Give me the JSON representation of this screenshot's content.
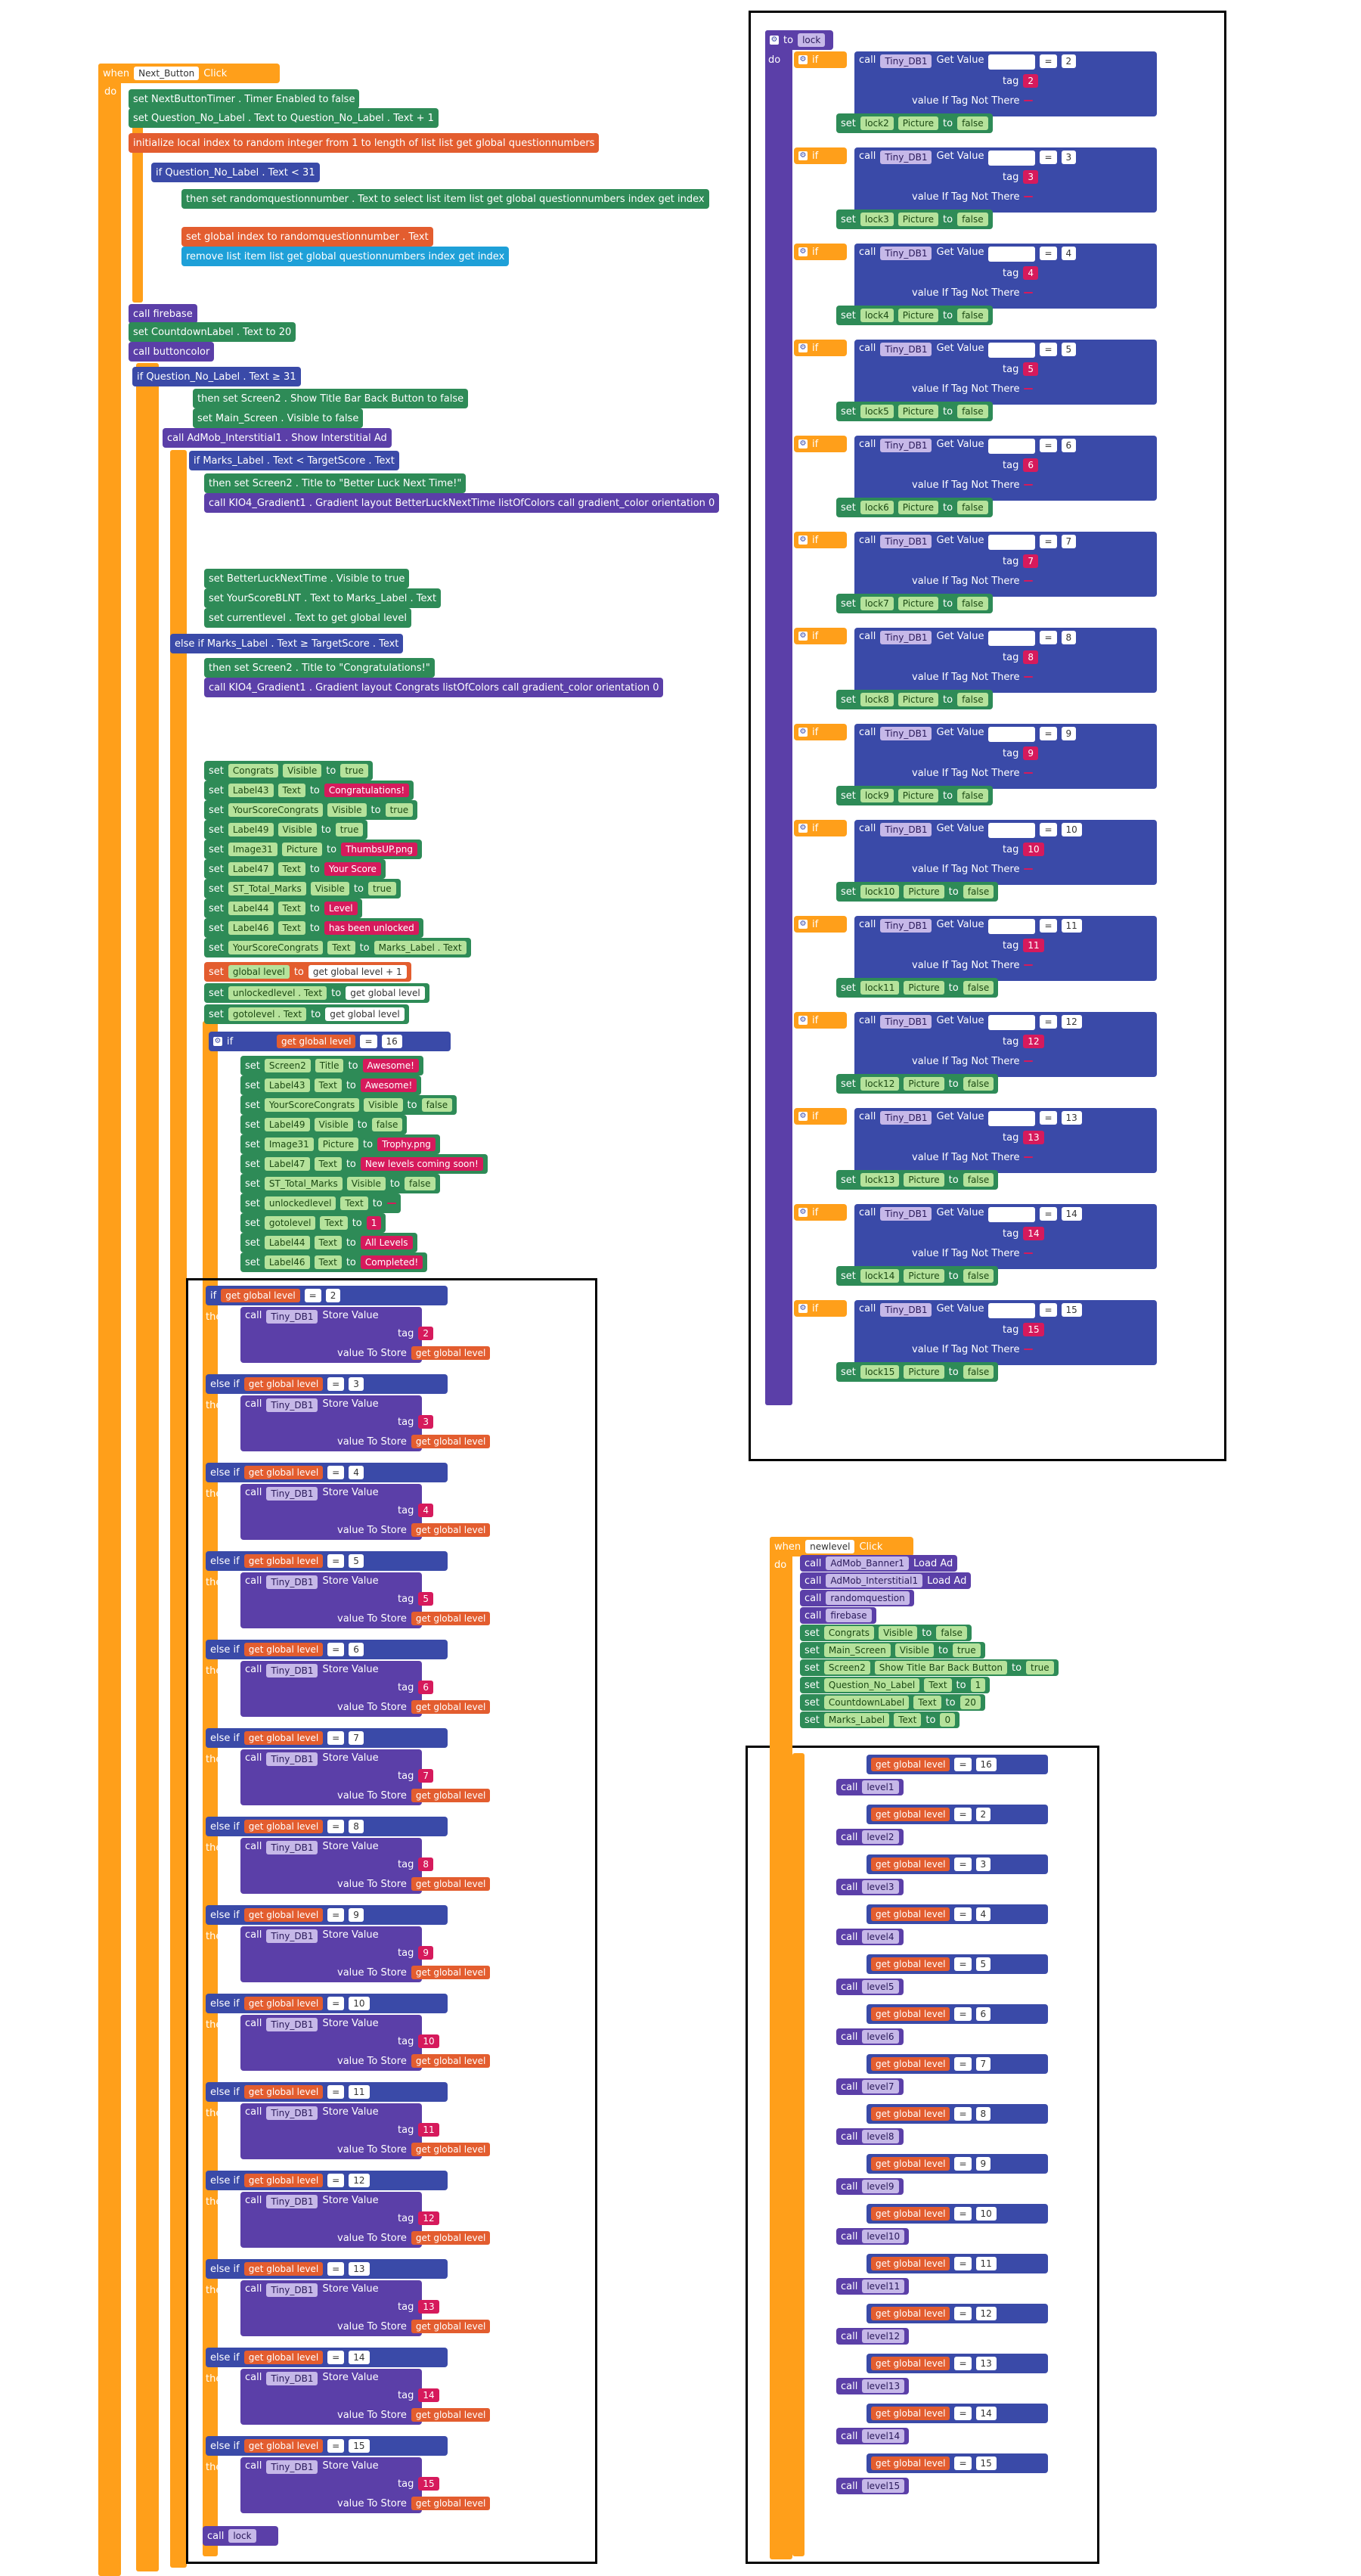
{
  "event_next": {
    "when": "when",
    "component": "Next_Button",
    "event": "Click",
    "do": "do"
  },
  "next_lines": [
    {
      "t": "set NextButtonTimer . Timer Enabled to false"
    },
    {
      "t": "set Question_No_Label . Text to  Question_No_Label . Text + 1"
    },
    {
      "t": "initialize local index to random integer from 1 to length of list list get global questionnumbers"
    },
    {
      "t": "if Question_No_Label . Text < 31"
    },
    {
      "t": "then set randomquestionnumber . Text to select list item list get global questionnumbers index get index"
    },
    {
      "t": "set global index to randomquestionnumber . Text"
    },
    {
      "t": "remove list item list get global questionnumbers index get index"
    },
    {
      "t": "call firebase"
    },
    {
      "t": "set CountdownLabel . Text to 20"
    },
    {
      "t": "call buttoncolor"
    },
    {
      "t": "if Question_No_Label . Text ≥ 31"
    },
    {
      "t": "then set Screen2 . Show Title Bar Back Button to false"
    },
    {
      "t": "set Main_Screen . Visible to false"
    },
    {
      "t": "call AdMob_Interstitial1 . Show Interstitial Ad"
    },
    {
      "t": "if Marks_Label . Text < TargetScore . Text"
    },
    {
      "t": "then set Screen2 . Title to \"Better Luck Next Time!\""
    },
    {
      "t": "call KIO4_Gradient1 . Gradient layout BetterLuckNextTime listOfColors call gradient_color orientation 0"
    },
    {
      "t": "set BetterLuckNextTime . Visible to true"
    },
    {
      "t": "set YourScoreBLNT . Text to Marks_Label . Text"
    },
    {
      "t": "set currentlevel . Text to get global level"
    },
    {
      "t": "else if Marks_Label . Text ≥ TargetScore . Text"
    },
    {
      "t": "then set Screen2 . Title to \"Congratulations!\""
    },
    {
      "t": "call KIO4_Gradient1 . Gradient layout Congrats listOfColors call gradient_color orientation 0"
    }
  ],
  "labels": {
    "set": "set",
    "call": "call",
    "to": "to",
    "get": "get",
    "if": "if",
    "then": "then",
    "else_if": "else if",
    "do": "do",
    "get_value": "Get Value",
    "tag": "tag",
    "not_there": "value If Tag Not There",
    "store_value": "Store Value",
    "value_to_store": "value To Store",
    "picture": "Picture",
    "false": "false",
    "true": "true",
    "tinydb": "Tiny_DB1",
    "global_level": "global level",
    "eq": "=",
    "to_lock": "to",
    "lock": "lock"
  },
  "congrats_sets": [
    {
      "comp": "Congrats",
      "prop": "Visible",
      "val": "true",
      "kind": "bool"
    },
    {
      "comp": "Label43",
      "prop": "Text",
      "val": "Congratulations!",
      "kind": "str"
    },
    {
      "comp": "YourScoreCongrats",
      "prop": "Visible",
      "val": "true",
      "kind": "bool"
    },
    {
      "comp": "Label49",
      "prop": "Visible",
      "val": "true",
      "kind": "bool"
    },
    {
      "comp": "Image31",
      "prop": "Picture",
      "val": "ThumbsUP.png",
      "kind": "str"
    },
    {
      "comp": "Label47",
      "prop": "Text",
      "val": "Your Score",
      "kind": "str"
    },
    {
      "comp": "ST_Total_Marks",
      "prop": "Visible",
      "val": "true",
      "kind": "bool"
    },
    {
      "comp": "Label44",
      "prop": "Text",
      "val": "Level",
      "kind": "str"
    },
    {
      "comp": "Label46",
      "prop": "Text",
      "val": "has been unlocked",
      "kind": "str"
    },
    {
      "comp": "YourScoreCongrats",
      "prop": "Text",
      "val": "Marks_Label . Text",
      "kind": "comp"
    }
  ],
  "level_sets": [
    {
      "t1": "set",
      "c": "global level",
      "t2": "to",
      "v": "get global level + 1"
    },
    {
      "t1": "set",
      "c": "unlockedlevel . Text",
      "t2": "to",
      "v": "get global level"
    },
    {
      "t1": "set",
      "c": "gotolevel . Text",
      "t2": "to",
      "v": "get global level"
    }
  ],
  "level16_if": {
    "val": "16"
  },
  "level16_sets": [
    {
      "comp": "Screen2",
      "prop": "Title",
      "val": "Awesome!",
      "kind": "str"
    },
    {
      "comp": "Label43",
      "prop": "Text",
      "val": "Awesome!",
      "kind": "str"
    },
    {
      "comp": "YourScoreCongrats",
      "prop": "Visible",
      "val": "false",
      "kind": "bool"
    },
    {
      "comp": "Label49",
      "prop": "Visible",
      "val": "false",
      "kind": "bool"
    },
    {
      "comp": "Image31",
      "prop": "Picture",
      "val": "Trophy.png",
      "kind": "str"
    },
    {
      "comp": "Label47",
      "prop": "Text",
      "val": "New levels coming soon!",
      "kind": "str"
    },
    {
      "comp": "ST_Total_Marks",
      "prop": "Visible",
      "val": "false",
      "kind": "bool"
    },
    {
      "comp": "unlockedlevel",
      "prop": "Text",
      "val": "",
      "kind": "str"
    },
    {
      "comp": "gotolevel",
      "prop": "Text",
      "val": "1",
      "kind": "str"
    },
    {
      "comp": "Label44",
      "prop": "Text",
      "val": "All Levels",
      "kind": "str"
    },
    {
      "comp": "Label46",
      "prop": "Text",
      "val": "Completed!",
      "kind": "str"
    }
  ],
  "store_levels": [
    "2",
    "3",
    "4",
    "5",
    "6",
    "7",
    "8",
    "9",
    "10",
    "11",
    "12",
    "13",
    "14",
    "15"
  ],
  "call_lock": "lock",
  "lock_proc": {
    "name": "lock",
    "levels": [
      "2",
      "3",
      "4",
      "5",
      "6",
      "7",
      "8",
      "9",
      "10",
      "11",
      "12",
      "13",
      "14",
      "15"
    ]
  },
  "event_newlevel": {
    "when": "when",
    "component": "newlevel",
    "event": "Click",
    "do": "do"
  },
  "newlevel_lines": [
    {
      "kind": "call",
      "comp": "AdMob_Banner1",
      "m": "Load Ad"
    },
    {
      "kind": "call",
      "comp": "AdMob_Interstitial1",
      "m": "Load Ad"
    },
    {
      "kind": "call",
      "comp": "randomquestion",
      "m": ""
    },
    {
      "kind": "call",
      "comp": "firebase",
      "m": ""
    },
    {
      "kind": "set",
      "comp": "Congrats",
      "prop": "Visible",
      "val": "false"
    },
    {
      "kind": "set",
      "comp": "Main_Screen",
      "prop": "Visible",
      "val": "true"
    },
    {
      "kind": "set",
      "comp": "Screen2",
      "prop": "Show Title Bar Back Button",
      "val": "true"
    },
    {
      "kind": "set",
      "comp": "Question_No_Label",
      "prop": "Text",
      "val": "1"
    },
    {
      "kind": "set",
      "comp": "CountdownLabel",
      "prop": "Text",
      "val": "20"
    },
    {
      "kind": "set",
      "comp": "Marks_Label",
      "prop": "Text",
      "val": "0"
    }
  ],
  "newlevel_ifs": [
    {
      "v": "16",
      "call": "level1"
    },
    {
      "v": "2",
      "call": "level2"
    },
    {
      "v": "3",
      "call": "level3"
    },
    {
      "v": "4",
      "call": "level4"
    },
    {
      "v": "5",
      "call": "level5"
    },
    {
      "v": "6",
      "call": "level6"
    },
    {
      "v": "7",
      "call": "level7"
    },
    {
      "v": "8",
      "call": "level8"
    },
    {
      "v": "9",
      "call": "level9"
    },
    {
      "v": "10",
      "call": "level10"
    },
    {
      "v": "11",
      "call": "level11"
    },
    {
      "v": "12",
      "call": "level12"
    },
    {
      "v": "13",
      "call": "level13"
    },
    {
      "v": "14",
      "call": "level14"
    },
    {
      "v": "15",
      "call": "level15"
    }
  ]
}
